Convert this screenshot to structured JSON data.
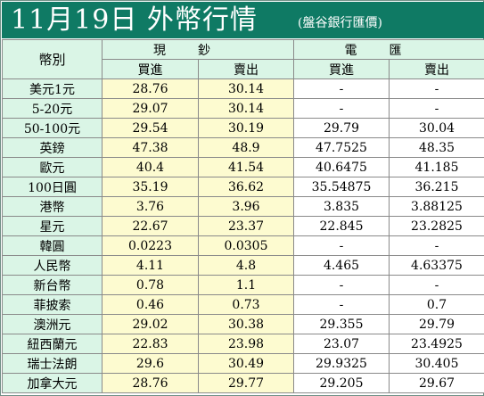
{
  "title": "11月19日 外幣行情",
  "subtitle": "(盤谷銀行匯價)",
  "headers": {
    "currency": "幣別",
    "cash": "現鈔",
    "wire": "電匯",
    "buy": "買進",
    "sell": "賣出"
  },
  "rows": [
    {
      "currency": "美元1元",
      "cash_buy": "28.76",
      "cash_sell": "30.14",
      "wire_buy": "-",
      "wire_sell": "-"
    },
    {
      "currency": "5-20元",
      "cash_buy": "29.07",
      "cash_sell": "30.14",
      "wire_buy": "-",
      "wire_sell": "-"
    },
    {
      "currency": "50-100元",
      "cash_buy": "29.54",
      "cash_sell": "30.19",
      "wire_buy": "29.79",
      "wire_sell": "30.04"
    },
    {
      "currency": "英鎊",
      "cash_buy": "47.38",
      "cash_sell": "48.9",
      "wire_buy": "47.7525",
      "wire_sell": "48.35"
    },
    {
      "currency": "歐元",
      "cash_buy": "40.4",
      "cash_sell": "41.54",
      "wire_buy": "40.6475",
      "wire_sell": "41.185"
    },
    {
      "currency": "100日圓",
      "cash_buy": "35.19",
      "cash_sell": "36.62",
      "wire_buy": "35.54875",
      "wire_sell": "36.215"
    },
    {
      "currency": "港幣",
      "cash_buy": "3.76",
      "cash_sell": "3.96",
      "wire_buy": "3.835",
      "wire_sell": "3.88125"
    },
    {
      "currency": "星元",
      "cash_buy": "22.67",
      "cash_sell": "23.37",
      "wire_buy": "22.845",
      "wire_sell": "23.2825"
    },
    {
      "currency": "韓圓",
      "cash_buy": "0.0223",
      "cash_sell": "0.0305",
      "wire_buy": "-",
      "wire_sell": "-"
    },
    {
      "currency": "人民幣",
      "cash_buy": "4.11",
      "cash_sell": "4.8",
      "wire_buy": "4.465",
      "wire_sell": "4.63375"
    },
    {
      "currency": "新台幣",
      "cash_buy": "0.78",
      "cash_sell": "1.1",
      "wire_buy": "-",
      "wire_sell": "-"
    },
    {
      "currency": "菲披索",
      "cash_buy": "0.46",
      "cash_sell": "0.73",
      "wire_buy": "-",
      "wire_sell": "0.7"
    },
    {
      "currency": "澳洲元",
      "cash_buy": "29.02",
      "cash_sell": "30.38",
      "wire_buy": "29.355",
      "wire_sell": "29.79"
    },
    {
      "currency": "紐西蘭元",
      "cash_buy": "22.83",
      "cash_sell": "23.98",
      "wire_buy": "23.07",
      "wire_sell": "23.4925"
    },
    {
      "currency": "瑞士法朗",
      "cash_buy": "29.6",
      "cash_sell": "30.49",
      "wire_buy": "29.9325",
      "wire_sell": "30.405"
    },
    {
      "currency": "加拿大元",
      "cash_buy": "28.76",
      "cash_sell": "29.77",
      "wire_buy": "29.205",
      "wire_sell": "29.67"
    }
  ]
}
